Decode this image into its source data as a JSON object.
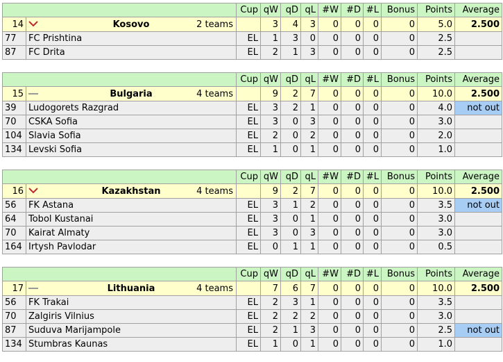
{
  "headers": [
    "Cup",
    "qW",
    "qD",
    "qL",
    "#W",
    "#D",
    "#L",
    "Bonus",
    "Points",
    "Average"
  ],
  "colors": {
    "header": "#ccf5c4",
    "country": "#ffffcc",
    "team": "#eeeeee",
    "not_out": "#a8cdf5",
    "trend_down": "#c0282d"
  },
  "groups": [
    {
      "rank": "14",
      "trend": "chevron-down-icon",
      "country": "Kosovo",
      "teams": "2 teams",
      "qW": "3",
      "qD": "4",
      "qL": "3",
      "W": "0",
      "D": "0",
      "L": "0",
      "bonus": "0",
      "points": "5.0",
      "average": "2.500",
      "clubs": [
        {
          "rank": "77",
          "name": "FC Prishtina",
          "cup": "EL",
          "qW": "1",
          "qD": "3",
          "qL": "0",
          "W": "0",
          "D": "0",
          "L": "0",
          "bonus": "0",
          "points": "2.5",
          "status": ""
        },
        {
          "rank": "87",
          "name": "FC Drita",
          "cup": "EL",
          "qW": "2",
          "qD": "1",
          "qL": "3",
          "W": "0",
          "D": "0",
          "L": "0",
          "bonus": "0",
          "points": "2.5",
          "status": ""
        }
      ]
    },
    {
      "rank": "15",
      "trend": "dash-icon",
      "country": "Bulgaria",
      "teams": "4 teams",
      "qW": "9",
      "qD": "2",
      "qL": "7",
      "W": "0",
      "D": "0",
      "L": "0",
      "bonus": "0",
      "points": "10.0",
      "average": "2.500",
      "clubs": [
        {
          "rank": "39",
          "name": "Ludogorets Razgrad",
          "cup": "EL",
          "qW": "3",
          "qD": "2",
          "qL": "1",
          "W": "0",
          "D": "0",
          "L": "0",
          "bonus": "0",
          "points": "4.0",
          "status": "not out"
        },
        {
          "rank": "70",
          "name": "CSKA Sofia",
          "cup": "EL",
          "qW": "3",
          "qD": "0",
          "qL": "3",
          "W": "0",
          "D": "0",
          "L": "0",
          "bonus": "0",
          "points": "3.0",
          "status": ""
        },
        {
          "rank": "104",
          "name": "Slavia Sofia",
          "cup": "EL",
          "qW": "2",
          "qD": "0",
          "qL": "2",
          "W": "0",
          "D": "0",
          "L": "0",
          "bonus": "0",
          "points": "2.0",
          "status": ""
        },
        {
          "rank": "134",
          "name": "Levski Sofia",
          "cup": "EL",
          "qW": "1",
          "qD": "0",
          "qL": "1",
          "W": "0",
          "D": "0",
          "L": "0",
          "bonus": "0",
          "points": "1.0",
          "status": ""
        }
      ]
    },
    {
      "rank": "16",
      "trend": "chevron-down-icon",
      "country": "Kazakhstan",
      "teams": "4 teams",
      "qW": "9",
      "qD": "2",
      "qL": "7",
      "W": "0",
      "D": "0",
      "L": "0",
      "bonus": "0",
      "points": "10.0",
      "average": "2.500",
      "clubs": [
        {
          "rank": "56",
          "name": "FK Astana",
          "cup": "EL",
          "qW": "3",
          "qD": "1",
          "qL": "2",
          "W": "0",
          "D": "0",
          "L": "0",
          "bonus": "0",
          "points": "3.5",
          "status": "not out"
        },
        {
          "rank": "64",
          "name": "Tobol Kustanai",
          "cup": "EL",
          "qW": "3",
          "qD": "0",
          "qL": "1",
          "W": "0",
          "D": "0",
          "L": "0",
          "bonus": "0",
          "points": "3.0",
          "status": ""
        },
        {
          "rank": "70",
          "name": "Kairat Almaty",
          "cup": "EL",
          "qW": "3",
          "qD": "0",
          "qL": "3",
          "W": "0",
          "D": "0",
          "L": "0",
          "bonus": "0",
          "points": "3.0",
          "status": ""
        },
        {
          "rank": "164",
          "name": "Irtysh Pavlodar",
          "cup": "EL",
          "qW": "0",
          "qD": "1",
          "qL": "1",
          "W": "0",
          "D": "0",
          "L": "0",
          "bonus": "0",
          "points": "0.5",
          "status": ""
        }
      ]
    },
    {
      "rank": "17",
      "trend": "dash-icon",
      "country": "Lithuania",
      "teams": "4 teams",
      "qW": "7",
      "qD": "6",
      "qL": "7",
      "W": "0",
      "D": "0",
      "L": "0",
      "bonus": "0",
      "points": "10.0",
      "average": "2.500",
      "clubs": [
        {
          "rank": "56",
          "name": "FK Trakai",
          "cup": "EL",
          "qW": "2",
          "qD": "3",
          "qL": "1",
          "W": "0",
          "D": "0",
          "L": "0",
          "bonus": "0",
          "points": "3.5",
          "status": ""
        },
        {
          "rank": "70",
          "name": "Zalgiris Vilnius",
          "cup": "EL",
          "qW": "2",
          "qD": "2",
          "qL": "2",
          "W": "0",
          "D": "0",
          "L": "0",
          "bonus": "0",
          "points": "3.0",
          "status": ""
        },
        {
          "rank": "87",
          "name": "Suduva Marijampole",
          "cup": "EL",
          "qW": "2",
          "qD": "1",
          "qL": "3",
          "W": "0",
          "D": "0",
          "L": "0",
          "bonus": "0",
          "points": "2.5",
          "status": "not out"
        },
        {
          "rank": "134",
          "name": "Stumbras Kaunas",
          "cup": "EL",
          "qW": "1",
          "qD": "0",
          "qL": "1",
          "W": "0",
          "D": "0",
          "L": "0",
          "bonus": "0",
          "points": "1.0",
          "status": ""
        }
      ]
    }
  ]
}
